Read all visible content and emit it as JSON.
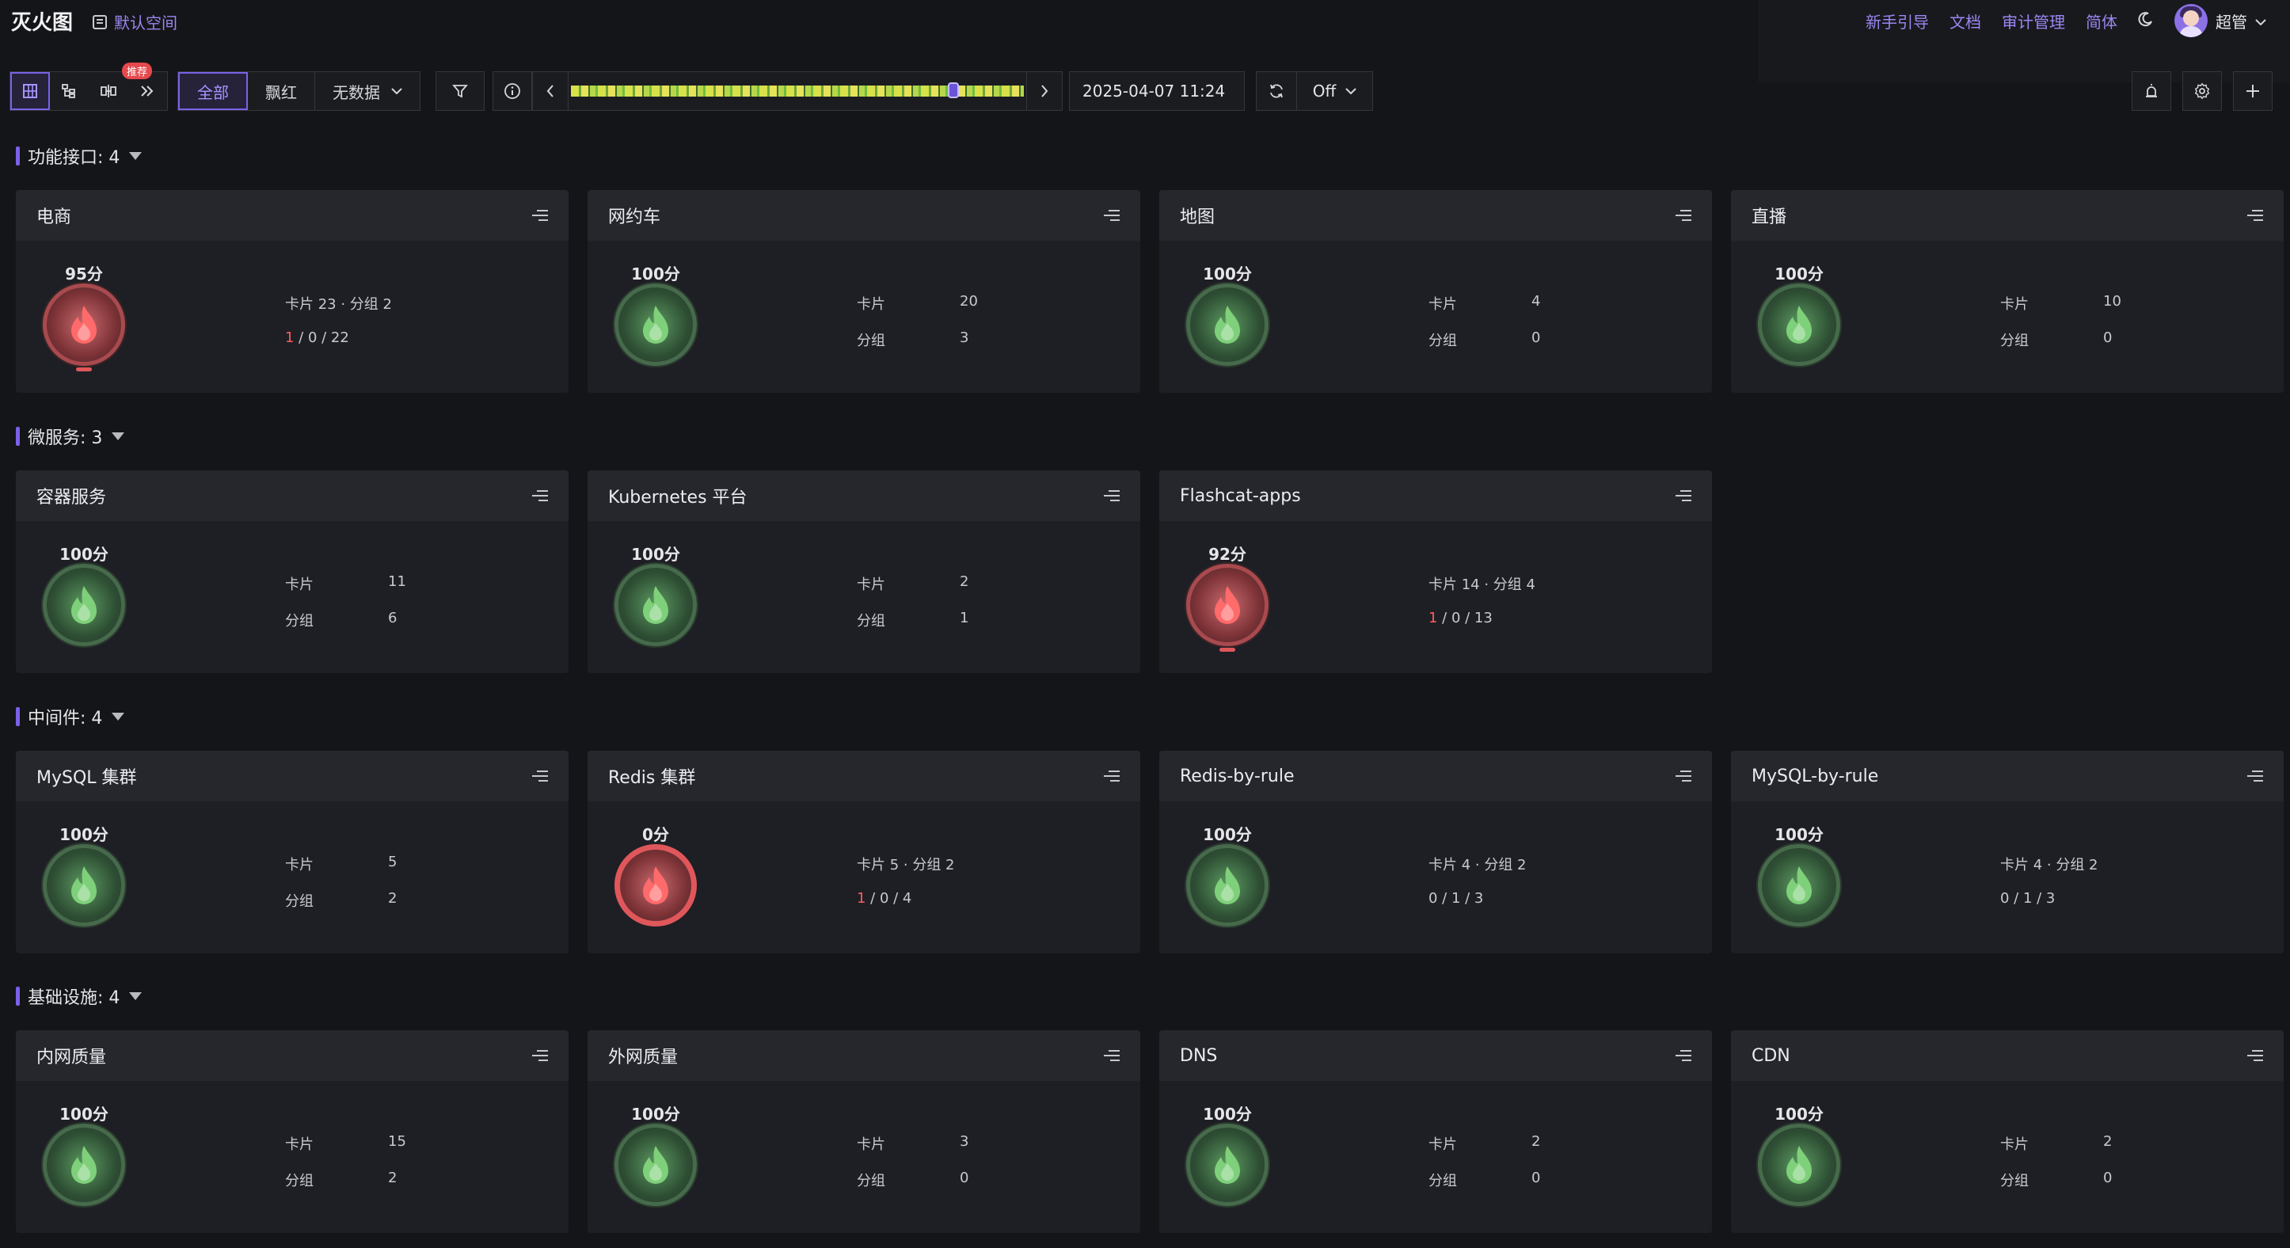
{
  "header": {
    "logo": "灭火图",
    "space": "默认空间",
    "links": [
      "新手引导",
      "文档",
      "审计管理",
      "简体"
    ],
    "user": "超管"
  },
  "toolbar": {
    "badge": "推荐",
    "tabs": [
      "全部",
      "飘红",
      "无数据"
    ],
    "datetime": "2025-04-07 11:24",
    "refresh": "Off"
  },
  "labels": {
    "cards": "卡片",
    "groups": "分组"
  },
  "sections": [
    {
      "title": "功能接口: 4",
      "cards": [
        {
          "name": "电商",
          "score": "95分",
          "status": "bad",
          "summary": "卡片 23 · 分组 2",
          "alarm": [
            "1",
            " / 0 / 22"
          ]
        },
        {
          "name": "网约车",
          "score": "100分",
          "status": "ok",
          "cards": "20",
          "groups": "3"
        },
        {
          "name": "地图",
          "score": "100分",
          "status": "ok",
          "cards": "4",
          "groups": "0"
        },
        {
          "name": "直播",
          "score": "100分",
          "status": "ok",
          "cards": "10",
          "groups": "0"
        }
      ]
    },
    {
      "title": "微服务: 3",
      "cards": [
        {
          "name": "容器服务",
          "score": "100分",
          "status": "ok",
          "cards": "11",
          "groups": "6"
        },
        {
          "name": "Kubernetes 平台",
          "score": "100分",
          "status": "ok",
          "cards": "2",
          "groups": "1"
        },
        {
          "name": "Flashcat-apps",
          "score": "92分",
          "status": "bad",
          "summary": "卡片 14 · 分组 4",
          "alarm": [
            "1",
            " / 0 / 13"
          ]
        }
      ]
    },
    {
      "title": "中间件: 4",
      "cards": [
        {
          "name": "MySQL 集群",
          "score": "100分",
          "status": "ok",
          "cards": "5",
          "groups": "2"
        },
        {
          "name": "Redis 集群",
          "score": "0分",
          "status": "crit",
          "summary": "卡片 5 · 分组 2",
          "alarm": [
            "1",
            " / 0 / 4"
          ]
        },
        {
          "name": "Redis-by-rule",
          "score": "100分",
          "status": "ok",
          "summary": "卡片 4 · 分组 2",
          "alarm": [
            "",
            "0 / 1 / 3"
          ]
        },
        {
          "name": "MySQL-by-rule",
          "score": "100分",
          "status": "ok",
          "summary": "卡片 4 · 分组 2",
          "alarm": [
            "",
            "0 / 1 / 3"
          ]
        }
      ]
    },
    {
      "title": "基础设施: 4",
      "cards": [
        {
          "name": "内网质量",
          "score": "100分",
          "status": "ok",
          "cards": "15",
          "groups": "2"
        },
        {
          "name": "外网质量",
          "score": "100分",
          "status": "ok",
          "cards": "3",
          "groups": "0"
        },
        {
          "name": "DNS",
          "score": "100分",
          "status": "ok",
          "cards": "2",
          "groups": "0"
        },
        {
          "name": "CDN",
          "score": "100分",
          "status": "ok",
          "cards": "2",
          "groups": "0"
        }
      ]
    }
  ],
  "colors": {
    "accent": "#7b61e8",
    "ok": "#5c9a60",
    "alert": "#e0575b"
  }
}
